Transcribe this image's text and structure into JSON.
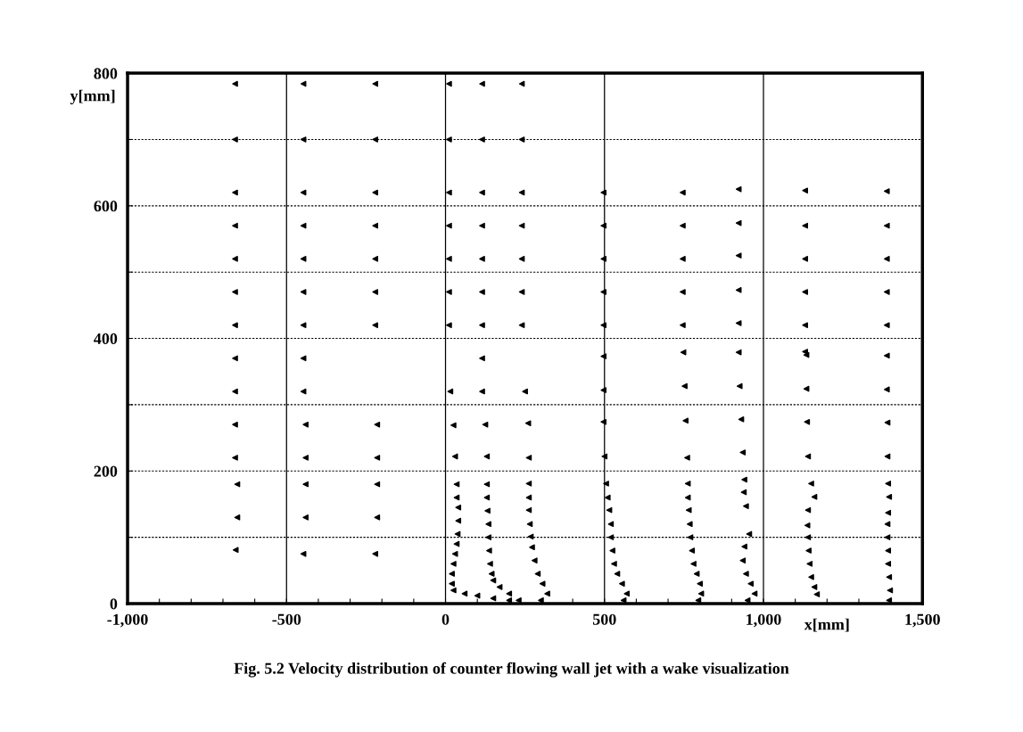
{
  "chart_data": {
    "type": "scatter",
    "marker": "triangle",
    "xlabel": "x[mm]",
    "ylabel": "y[mm]",
    "annotations": [
      "Fig. 5.2 Velocity distribution of counter flowing wall jet with a wake visualization"
    ],
    "xlim": [
      -1000,
      1500
    ],
    "ylim": [
      0,
      800
    ],
    "xticks": [
      {
        "value": -1000,
        "label": "-1,000"
      },
      {
        "value": -900,
        "label": null
      },
      {
        "value": -800,
        "label": null
      },
      {
        "value": -700,
        "label": null
      },
      {
        "value": -600,
        "label": null
      },
      -500,
      {
        "value": -400,
        "label": null
      },
      {
        "value": -300,
        "label": null
      },
      {
        "value": -200,
        "label": null
      },
      {
        "value": -100,
        "label": null
      },
      0,
      {
        "value": 100,
        "label": null
      },
      {
        "value": 200,
        "label": null
      },
      {
        "value": 300,
        "label": null
      },
      {
        "value": 400,
        "label": null
      },
      500,
      {
        "value": 600,
        "label": null
      },
      {
        "value": 700,
        "label": null
      },
      {
        "value": 800,
        "label": null
      },
      {
        "value": 900,
        "label": null
      },
      {
        "value": 1000,
        "label": "1,000"
      },
      {
        "value": 1100,
        "label": null
      },
      {
        "value": 1200,
        "label": null
      },
      {
        "value": 1300,
        "label": null
      },
      {
        "value": 1400,
        "label": null
      },
      {
        "value": 1500,
        "label": "1,500"
      }
    ],
    "yticks": [
      0,
      {
        "value": 100,
        "label": null
      },
      200,
      {
        "value": 300,
        "label": null
      },
      400,
      {
        "value": 500,
        "label": null
      },
      600,
      {
        "value": 700,
        "label": null
      },
      800
    ],
    "grid": true,
    "legend": false,
    "series": [
      {
        "color": "#000000",
        "x": [
          -662,
          -662,
          -662,
          -662,
          -662,
          -662,
          -662,
          -662,
          -662,
          -662,
          -662,
          -655,
          -655,
          -660,
          -447,
          -447,
          -447,
          -447,
          -447,
          -447,
          -447,
          -447,
          -447,
          -440,
          -440,
          -440,
          -440,
          -447,
          -221,
          -221,
          -221,
          -221,
          -221,
          -221,
          -221,
          -215,
          -215,
          -215,
          -215,
          -221
        ],
        "values": [
          784,
          700,
          620,
          570,
          520,
          470,
          420,
          370,
          320,
          270,
          220,
          180,
          130,
          81,
          784,
          700,
          620,
          570,
          520,
          470,
          420,
          370,
          320,
          270,
          220,
          180,
          130,
          75,
          784,
          700,
          620,
          570,
          520,
          470,
          420,
          270,
          220,
          180,
          130,
          75
        ]
      },
      {
        "color": "#000000",
        "x": [
          11,
          11,
          11,
          11,
          11,
          11,
          11,
          15,
          25,
          30,
          35,
          35,
          40,
          40,
          38,
          35,
          30,
          25,
          20,
          20,
          25,
          60,
          100,
          150,
          200
        ],
        "values": [
          784,
          700,
          620,
          570,
          520,
          470,
          420,
          320,
          269,
          222,
          180,
          160,
          145,
          125,
          105,
          90,
          75,
          60,
          45,
          30,
          20,
          15,
          12,
          8,
          5
        ]
      },
      {
        "color": "#000000",
        "x": [
          115,
          115,
          115,
          115,
          115,
          115,
          115,
          115,
          115,
          125,
          130,
          130,
          130,
          132,
          135,
          135,
          137,
          140,
          145,
          150,
          170,
          200,
          230
        ],
        "values": [
          784,
          700,
          620,
          570,
          520,
          470,
          420,
          370,
          320,
          270,
          222,
          180,
          160,
          140,
          120,
          100,
          80,
          60,
          45,
          35,
          25,
          15,
          5
        ]
      },
      {
        "color": "#000000",
        "x": [
          240,
          240,
          240,
          240,
          240,
          240,
          240,
          250,
          260,
          262,
          262,
          262,
          262,
          265,
          268,
          272,
          280,
          290,
          305,
          320,
          300
        ],
        "values": [
          784,
          700,
          620,
          570,
          520,
          470,
          420,
          320,
          272,
          220,
          181,
          160,
          141,
          120,
          101,
          85,
          65,
          45,
          30,
          15,
          5
        ]
      },
      {
        "color": "#000000",
        "x": [
          497,
          497,
          497,
          497,
          497,
          497,
          497,
          497,
          500,
          505,
          510,
          515,
          520,
          520,
          525,
          530,
          540,
          555,
          570,
          560
        ],
        "values": [
          620,
          570,
          520,
          470,
          420,
          373,
          322,
          274,
          222,
          181,
          160,
          141,
          120,
          100,
          80,
          60,
          45,
          30,
          15,
          5
        ]
      },
      {
        "color": "#000000",
        "x": [
          746,
          746,
          746,
          746,
          746,
          748,
          752,
          755,
          760,
          762,
          762,
          765,
          768,
          770,
          775,
          780,
          790,
          800,
          804,
          795
        ],
        "values": [
          620,
          570,
          520,
          470,
          420,
          379,
          328,
          276,
          220,
          181,
          160,
          141,
          120,
          100,
          80,
          60,
          45,
          30,
          15,
          5
        ]
      },
      {
        "color": "#000000",
        "x": [
          922,
          922,
          922,
          922,
          922,
          922,
          925,
          930,
          935,
          940,
          938,
          945,
          955,
          940,
          935,
          945,
          960,
          972,
          950
        ],
        "values": [
          625,
          574,
          525,
          473,
          423,
          379,
          328,
          278,
          228,
          187,
          168,
          147,
          105,
          86,
          65,
          45,
          30,
          15,
          5
        ]
      },
      {
        "color": "#000000",
        "x": [
          1131,
          1131,
          1131,
          1131,
          1131,
          1131,
          1135,
          1135,
          1137,
          1140,
          1150,
          1160,
          1140,
          1138,
          1140,
          1142,
          1145,
          1150,
          1160,
          1168
        ],
        "values": [
          623,
          570,
          520,
          470,
          420,
          380,
          375,
          324,
          274,
          222,
          181,
          161,
          141,
          118,
          100,
          80,
          60,
          40,
          25,
          14
        ]
      },
      {
        "color": "#000000",
        "x": [
          1388,
          1388,
          1388,
          1388,
          1388,
          1388,
          1388,
          1390,
          1390,
          1392,
          1395,
          1392,
          1390,
          1390,
          1392,
          1392,
          1395,
          1398,
          1395
        ],
        "values": [
          622,
          570,
          520,
          470,
          420,
          374,
          323,
          273,
          222,
          181,
          161,
          137,
          120,
          100,
          80,
          60,
          40,
          20,
          5
        ]
      }
    ]
  }
}
